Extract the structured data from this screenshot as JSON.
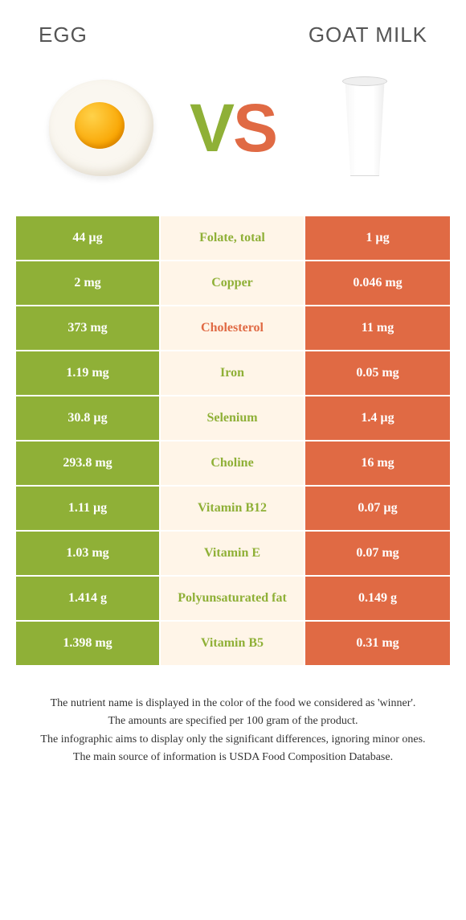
{
  "titles": {
    "left": "EGG",
    "right": "GOAT MILK"
  },
  "vs": {
    "v": "V",
    "s": "S"
  },
  "colors": {
    "left": "#8fb037",
    "right": "#e06a44",
    "mid_bg": "#fff5e8"
  },
  "rows": [
    {
      "left": "44 µg",
      "label": "Folate, total",
      "right": "1 µg",
      "winner": "left"
    },
    {
      "left": "2 mg",
      "label": "Copper",
      "right": "0.046 mg",
      "winner": "left"
    },
    {
      "left": "373 mg",
      "label": "Cholesterol",
      "right": "11 mg",
      "winner": "right"
    },
    {
      "left": "1.19 mg",
      "label": "Iron",
      "right": "0.05 mg",
      "winner": "left"
    },
    {
      "left": "30.8 µg",
      "label": "Selenium",
      "right": "1.4 µg",
      "winner": "left"
    },
    {
      "left": "293.8 mg",
      "label": "Choline",
      "right": "16 mg",
      "winner": "left"
    },
    {
      "left": "1.11 µg",
      "label": "Vitamin B12",
      "right": "0.07 µg",
      "winner": "left"
    },
    {
      "left": "1.03 mg",
      "label": "Vitamin E",
      "right": "0.07 mg",
      "winner": "left"
    },
    {
      "left": "1.414 g",
      "label": "Polyunsaturated fat",
      "right": "0.149 g",
      "winner": "left"
    },
    {
      "left": "1.398 mg",
      "label": "Vitamin B5",
      "right": "0.31 mg",
      "winner": "left"
    }
  ],
  "footnotes": [
    "The nutrient name is displayed in the color of the food we considered as 'winner'.",
    "The amounts are specified per 100 gram of the product.",
    "The infographic aims to display only the significant differences, ignoring minor ones.",
    "The main source of information is USDA Food Composition Database."
  ]
}
